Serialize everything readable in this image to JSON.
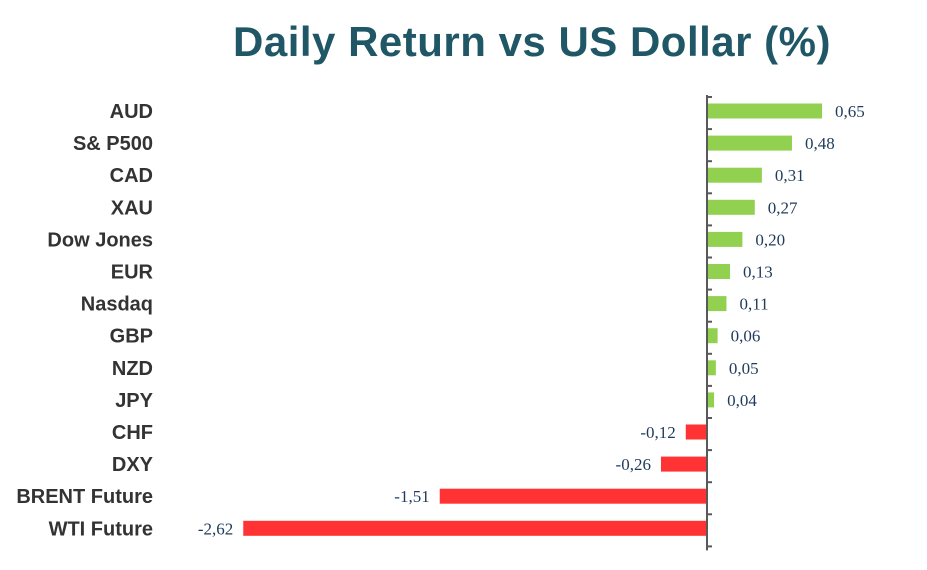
{
  "chart_data": {
    "type": "bar",
    "orientation": "horizontal",
    "title": "Daily Return vs US Dollar (%)",
    "categories": [
      "AUD",
      "S& P500",
      "CAD",
      "XAU",
      "Dow Jones",
      "EUR",
      "Nasdaq",
      "GBP",
      "NZD",
      "JPY",
      "CHF",
      "DXY",
      "BRENT Future",
      "WTI Future"
    ],
    "values": [
      0.65,
      0.48,
      0.31,
      0.27,
      0.2,
      0.13,
      0.11,
      0.06,
      0.05,
      0.04,
      -0.12,
      -0.26,
      -1.51,
      -2.62
    ],
    "value_labels": [
      "0,65",
      "0,48",
      "0,31",
      "0,27",
      "0,20",
      "0,13",
      "0,11",
      "0,06",
      "0,05",
      "0,04",
      "-0,12",
      "-0,26",
      "-1,51",
      "-2,62"
    ],
    "xlim": [
      -2.62,
      0.65
    ],
    "grid": false,
    "legend": "none",
    "colors": {
      "positive": "#92d050",
      "negative": "#ff3333",
      "axis": "#595959",
      "title": "#1f5766",
      "category_text": "#333333",
      "value_text": "#1f3a5a"
    }
  }
}
